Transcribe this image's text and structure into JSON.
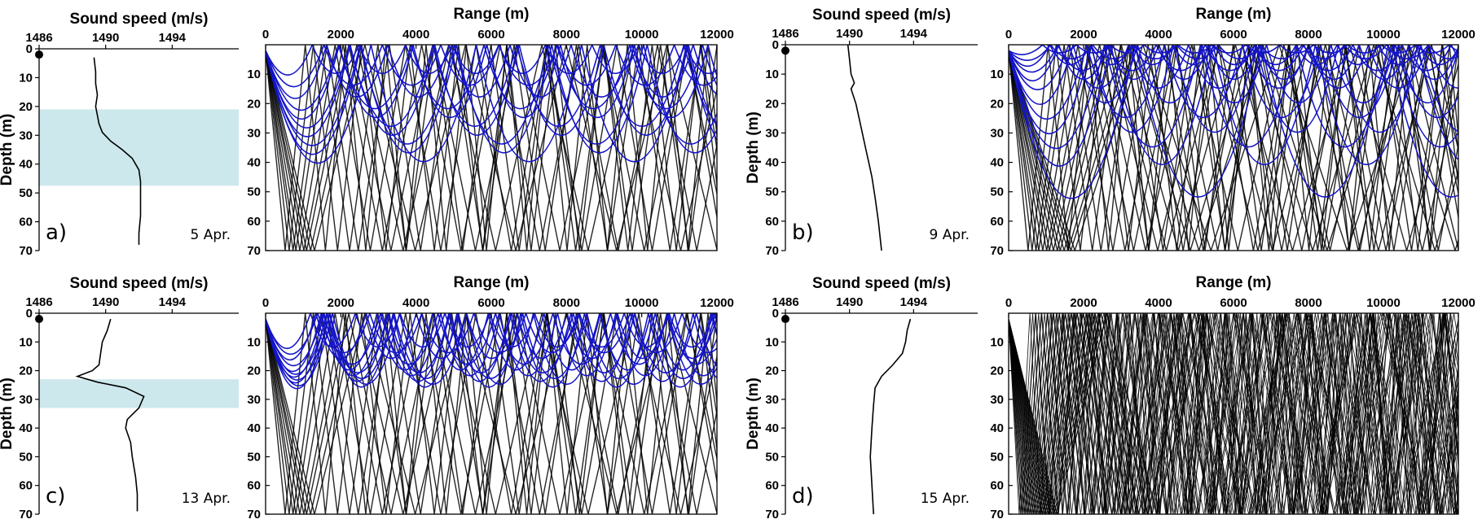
{
  "figure": {
    "background": "#ffffff",
    "highlight_color": "#cde8ec",
    "surface_ray_color": "#1414c8",
    "bottom_ray_color": "#000000",
    "source_marker_color": "#000000"
  },
  "chart_data": [
    {
      "type": "line",
      "panel": "a",
      "panel_label": "a)",
      "date": "5 Apr.",
      "profile": {
        "xlabel": "Sound speed (m/s)",
        "ylabel": "Depth (m)",
        "xlim": [
          1486,
          1498
        ],
        "ylim": [
          0,
          70
        ],
        "xticks": [
          "1486",
          "1490",
          "1494"
        ],
        "xtick_values": [
          1486,
          1490,
          1494
        ],
        "yticks": [
          "0",
          "10",
          "20",
          "30",
          "40",
          "50",
          "60",
          "70"
        ],
        "highlight_depth": [
          21,
          47.5
        ],
        "x": [
          1489.3,
          1489.4,
          1489.4,
          1489.5,
          1489.4,
          1489.5,
          1489.6,
          1489.8,
          1490.3,
          1491.0,
          1491.6,
          1492.0,
          1492.1,
          1492.1,
          1492.1,
          1492.0,
          1492.0
        ],
        "y": [
          3,
          8,
          12,
          16,
          20,
          23,
          26,
          29,
          32,
          35,
          38,
          42,
          46,
          52,
          58,
          64,
          68
        ]
      },
      "rays": {
        "xlabel": "Range (m)",
        "xlim": [
          0,
          12000
        ],
        "ylim": [
          0,
          70
        ],
        "xticks": [
          "0",
          "2000",
          "4000",
          "6000",
          "8000",
          "10000",
          "12000"
        ],
        "yticks": [
          "10",
          "20",
          "30",
          "40",
          "50",
          "60",
          "70"
        ],
        "source_depth": 2,
        "surface_turn_depths": [
          10,
          14,
          18,
          22,
          25,
          28,
          31,
          34,
          37,
          40
        ],
        "bottom_ray_count": 9
      }
    },
    {
      "type": "line",
      "panel": "b",
      "panel_label": "b)",
      "date": "9 Apr.",
      "profile": {
        "xlabel": "Sound speed (m/s)",
        "ylabel": "Depth (m)",
        "xlim": [
          1486,
          1498
        ],
        "ylim": [
          0,
          70
        ],
        "xticks": [
          "1486",
          "1490",
          "1494"
        ],
        "xtick_values": [
          1486,
          1490,
          1494
        ],
        "yticks": [
          "0",
          "10",
          "20",
          "30",
          "40",
          "50",
          "60",
          "70"
        ],
        "highlight_depth": null,
        "x": [
          1489.9,
          1490.0,
          1490.1,
          1490.3,
          1490.1,
          1490.4,
          1490.6,
          1490.8,
          1491.0,
          1491.2,
          1491.4,
          1491.6,
          1491.8,
          1492.0
        ],
        "y": [
          0,
          5,
          10,
          13,
          15,
          20,
          25,
          30,
          35,
          40,
          45,
          52,
          60,
          70
        ]
      },
      "rays": {
        "xlabel": "Range (m)",
        "xlim": [
          0,
          12000
        ],
        "ylim": [
          0,
          70
        ],
        "xticks": [
          "0",
          "2000",
          "4000",
          "6000",
          "8000",
          "10000",
          "12000"
        ],
        "yticks": [
          "10",
          "20",
          "30",
          "40",
          "50",
          "60",
          "70"
        ],
        "source_depth": 2,
        "surface_turn_depths": [
          3,
          5,
          7,
          9,
          12,
          15,
          20,
          25,
          30,
          35,
          41,
          52
        ],
        "bottom_ray_count": 14
      }
    },
    {
      "type": "line",
      "panel": "c",
      "panel_label": "c)",
      "date": "13 Apr.",
      "profile": {
        "xlabel": "Sound speed (m/s)",
        "ylabel": "Depth (m)",
        "xlim": [
          1486,
          1498
        ],
        "ylim": [
          0,
          70
        ],
        "xticks": [
          "1486",
          "1490",
          "1494"
        ],
        "xtick_values": [
          1486,
          1490,
          1494
        ],
        "yticks": [
          "0",
          "10",
          "20",
          "30",
          "40",
          "50",
          "60",
          "70"
        ],
        "highlight_depth": [
          23,
          33
        ],
        "x": [
          1490.3,
          1490.1,
          1489.8,
          1489.7,
          1489.6,
          1489.2,
          1488.3,
          1489.5,
          1491.2,
          1492.3,
          1492.0,
          1491.3,
          1491.2,
          1491.5,
          1491.6,
          1491.8,
          1491.9,
          1491.9
        ],
        "y": [
          2,
          6,
          10,
          14,
          18,
          20,
          22,
          24,
          26,
          29,
          33,
          37,
          40,
          45,
          50,
          57,
          63,
          69
        ]
      },
      "rays": {
        "xlabel": "Range (m)",
        "xlim": [
          0,
          12000
        ],
        "ylim": [
          0,
          70
        ],
        "xticks": [
          "0",
          "2000",
          "4000",
          "6000",
          "8000",
          "10000",
          "12000"
        ],
        "yticks": [
          "10",
          "20",
          "30",
          "40",
          "50",
          "60",
          "70"
        ],
        "source_depth": 2,
        "surface_turn_depths": [
          12,
          14,
          16,
          18,
          20,
          21,
          22,
          23,
          24,
          25,
          26
        ],
        "bottom_ray_count": 9
      }
    },
    {
      "type": "line",
      "panel": "d",
      "panel_label": "d)",
      "date": "15 Apr.",
      "profile": {
        "xlabel": "Sound speed (m/s)",
        "ylabel": "Depth (m)",
        "xlim": [
          1486,
          1498
        ],
        "ylim": [
          0,
          70
        ],
        "xticks": [
          "1486",
          "1490",
          "1494"
        ],
        "xtick_values": [
          1486,
          1490,
          1494
        ],
        "yticks": [
          "0",
          "10",
          "20",
          "30",
          "40",
          "50",
          "60",
          "70"
        ],
        "highlight_depth": null,
        "x": [
          1493.8,
          1493.6,
          1493.5,
          1493.3,
          1492.7,
          1492.0,
          1491.6,
          1491.5,
          1491.4,
          1491.3,
          1491.4,
          1491.5
        ],
        "y": [
          2,
          6,
          10,
          14,
          18,
          22,
          26,
          32,
          40,
          50,
          60,
          70
        ]
      },
      "rays": {
        "xlabel": "Range (m)",
        "xlim": [
          0,
          12000
        ],
        "ylim": [
          0,
          70
        ],
        "xticks": [
          "0",
          "2000",
          "4000",
          "6000",
          "8000",
          "10000",
          "12000"
        ],
        "yticks": [
          "10",
          "20",
          "30",
          "40",
          "50",
          "60",
          "70"
        ],
        "source_depth": 2,
        "surface_turn_depths": [],
        "bottom_ray_count": 40
      }
    }
  ]
}
